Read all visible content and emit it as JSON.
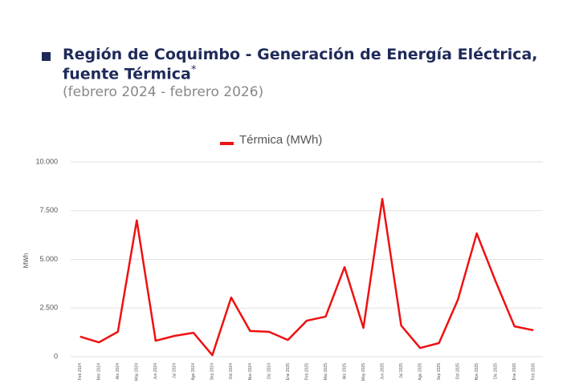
{
  "chart_data": {
    "type": "line",
    "title": "Región de Coquimbo - Generación de Energía Eléctrica, fuente Térmica",
    "title_note": "*",
    "subtitle": "(febrero 2024 - febrero 2026)",
    "ylabel": "MWh",
    "categories": [
      "Feb 2024",
      "Mar 2024",
      "Abr 2024",
      "May 2024",
      "Jun 2024",
      "Jul 2024",
      "Ago 2024",
      "Sep 2024",
      "Oct 2024",
      "Nov 2024",
      "Dic 2024",
      "Ene 2025",
      "Feb 2025",
      "Mar 2025",
      "Abr 2025",
      "May 2025",
      "Jun 2025",
      "Jul 2025",
      "Ago 2025",
      "Sep 2025",
      "Oct 2025",
      "Nov 2025",
      "Dic 2025",
      "Ene 2026",
      "Feb 2026"
    ],
    "series": [
      {
        "name": "Térmica (MWh)",
        "color": "#ee1111",
        "values": [
          1030,
          740,
          1280,
          7000,
          820,
          1070,
          1230,
          80,
          3040,
          1320,
          1280,
          860,
          1850,
          2060,
          4600,
          1480,
          8100,
          1600,
          450,
          700,
          2920,
          6330,
          3870,
          1560,
          1360
        ]
      }
    ],
    "ylim": [
      0,
      10000
    ],
    "yticks": [
      0,
      {
        "value": 2500,
        "label": "2.500"
      },
      {
        "value": 5000,
        "label": "5.000"
      },
      {
        "value": 7500,
        "label": "7.500"
      },
      {
        "value": 10000,
        "label": "10.000"
      }
    ],
    "grid": true,
    "legend": "top"
  }
}
